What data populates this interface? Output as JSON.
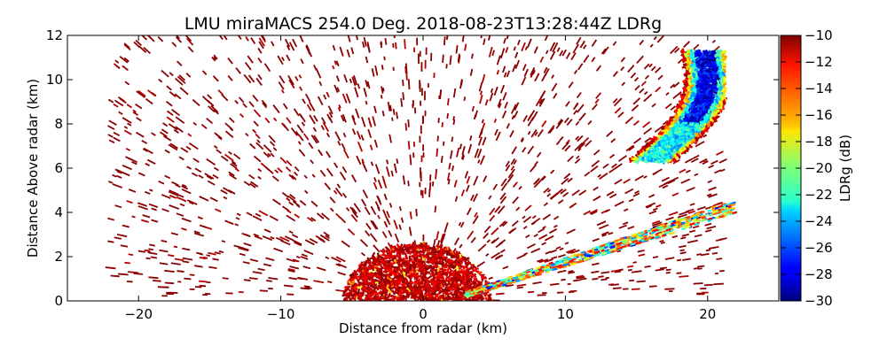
{
  "chart_data": {
    "type": "heatmap",
    "title": "LMU miraMACS 254.0 Deg. 2018-08-23T13:28:44Z  LDRg",
    "xlabel": "Distance from radar (km)",
    "ylabel": "Distance Above radar  (km)",
    "xlim": [
      -25,
      25
    ],
    "ylim": [
      0,
      12
    ],
    "xticks": [
      -20,
      -10,
      0,
      10,
      20
    ],
    "yticks": [
      0,
      2,
      4,
      6,
      8,
      10,
      12
    ],
    "xtick_labels": [
      "−20",
      "−10",
      "0",
      "10",
      "20"
    ],
    "ytick_labels": [
      "0",
      "2",
      "4",
      "6",
      "8",
      "10",
      "12"
    ],
    "colorbar": {
      "label": "LDRg (dB)",
      "range": [
        -30,
        -10
      ],
      "ticks": [
        -10,
        -12,
        -14,
        -16,
        -18,
        -20,
        -22,
        -24,
        -26,
        -28,
        -30
      ],
      "tick_labels": [
        "−10",
        "−12",
        "−14",
        "−16",
        "−18",
        "−20",
        "−22",
        "−24",
        "−26",
        "−28",
        "−30"
      ],
      "colormap": "jet"
    },
    "regions": [
      {
        "name": "scattered-echoes",
        "description": "sparse returns over entire RHI sector",
        "x_range": [
          -22,
          21
        ],
        "y_range": [
          0,
          12
        ],
        "ldr_db": -10
      },
      {
        "name": "near-surface-clutter",
        "x_range": [
          -5,
          4
        ],
        "y_range": [
          0,
          2.6
        ],
        "ldr_db": -11
      },
      {
        "name": "low-elevation-streak",
        "x_range": [
          3,
          22
        ],
        "y_range": [
          0.2,
          4.3
        ],
        "ldr_db_range": [
          -28,
          -12
        ]
      },
      {
        "name": "cloud-band",
        "x_range": [
          14,
          21
        ],
        "y_range": [
          6.2,
          11.5
        ],
        "ldr_db_range": [
          -30,
          -10
        ]
      }
    ]
  },
  "colors": {
    "axes": "#000000",
    "background": "#ffffff",
    "echo_dark_red": "#8b0000",
    "echo_red": "#cc0000"
  }
}
